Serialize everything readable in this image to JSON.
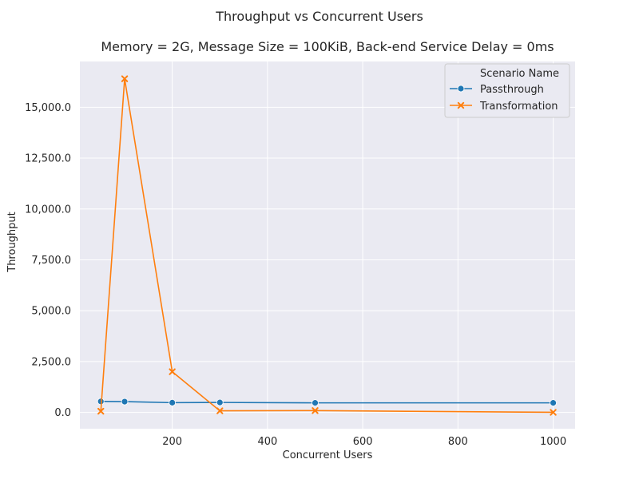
{
  "chart_data": {
    "type": "line",
    "suptitle": "Throughput vs Concurrent Users",
    "title": "Memory = 2G, Message Size = 100KiB, Back-end Service Delay = 0ms",
    "xlabel": "Concurrent Users",
    "ylabel": "Throughput",
    "xlim": [
      6,
      1046
    ],
    "ylim": [
      -800,
      17250
    ],
    "x_ticks": [
      200,
      400,
      600,
      800,
      1000
    ],
    "y_ticks": [
      0,
      2500,
      5000,
      7500,
      10000,
      12500,
      15000
    ],
    "y_tick_labels": [
      "0.0",
      "2,500.0",
      "5,000.0",
      "7,500.0",
      "10,000.0",
      "12,500.0",
      "15,000.0"
    ],
    "grid": true,
    "legend": {
      "title": "Scenario Name",
      "placement": "top-right"
    },
    "series": [
      {
        "name": "Passthrough",
        "color": "#1f77b4",
        "marker": "circle",
        "x": [
          50,
          100,
          200,
          300,
          500,
          1000
        ],
        "y": [
          540,
          530,
          480,
          490,
          470,
          470
        ]
      },
      {
        "name": "Transformation",
        "color": "#ff7f0e",
        "marker": "x",
        "x": [
          50,
          100,
          200,
          300,
          500,
          1000
        ],
        "y": [
          60,
          16400,
          2000,
          80,
          90,
          5
        ]
      }
    ]
  }
}
